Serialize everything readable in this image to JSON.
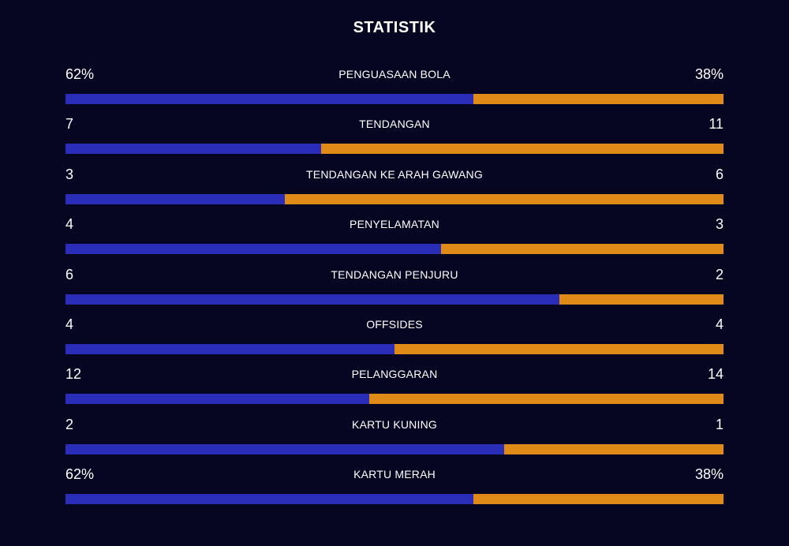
{
  "header": {
    "title": "STATISTIK"
  },
  "colors": {
    "background": "#060623",
    "home": "#2a2db8",
    "away": "#e08a17"
  },
  "stats": [
    {
      "label": "PENGUASAAN BOLA",
      "left": "62%",
      "right": "38%",
      "home_share": 0.62
    },
    {
      "label": "TENDANGAN",
      "left": "7",
      "right": "11",
      "home_share": 0.389
    },
    {
      "label": "TENDANGAN KE ARAH GAWANG",
      "left": "3",
      "right": "6",
      "home_share": 0.333
    },
    {
      "label": "PENYELAMATAN",
      "left": "4",
      "right": "3",
      "home_share": 0.571
    },
    {
      "label": "TENDANGAN PENJURU",
      "left": "6",
      "right": "2",
      "home_share": 0.75
    },
    {
      "label": "OFFSIDES",
      "left": "4",
      "right": "4",
      "home_share": 0.5
    },
    {
      "label": "PELANGGARAN",
      "left": "12",
      "right": "14",
      "home_share": 0.462
    },
    {
      "label": "KARTU KUNING",
      "left": "2",
      "right": "1",
      "home_share": 0.667
    },
    {
      "label": "KARTU MERAH",
      "left": "62%",
      "right": "38%",
      "home_share": 0.62
    }
  ]
}
